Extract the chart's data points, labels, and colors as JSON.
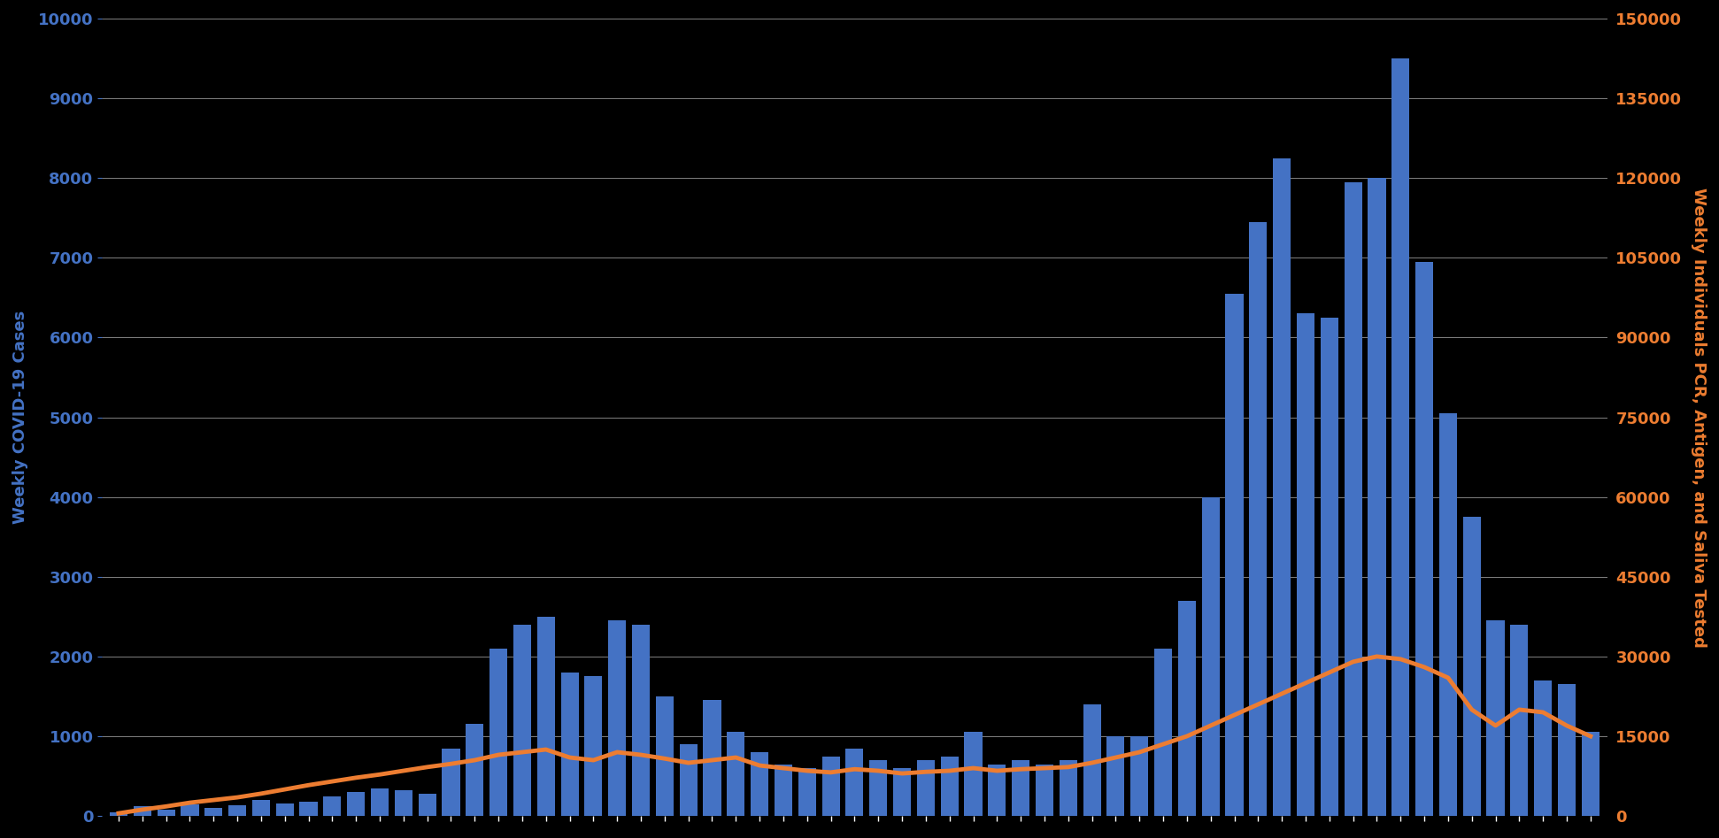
{
  "weekly_cases": [
    50,
    120,
    80,
    150,
    100,
    130,
    200,
    160,
    180,
    250,
    300,
    350,
    320,
    280,
    850,
    1150,
    2100,
    2400,
    2500,
    1800,
    1750,
    2450,
    2400,
    1500,
    900,
    1450,
    1050,
    800,
    650,
    600,
    750,
    850,
    700,
    600,
    700,
    750,
    1050,
    650,
    700,
    650,
    700,
    1400,
    1000,
    1000,
    2100,
    2700,
    4000,
    6550,
    7450,
    8250,
    6300,
    6250,
    7950,
    8000,
    9500,
    6950,
    5050,
    3750,
    2450,
    2400,
    1700,
    1650,
    1050
  ],
  "weekly_tested": [
    500,
    1200,
    1800,
    2500,
    3000,
    3500,
    4200,
    5000,
    5800,
    6500,
    7200,
    7800,
    8500,
    9200,
    9800,
    10500,
    11500,
    12000,
    12500,
    11000,
    10500,
    12000,
    11500,
    10800,
    10000,
    10500,
    11000,
    9500,
    9000,
    8500,
    8200,
    8800,
    8500,
    8000,
    8300,
    8500,
    9000,
    8500,
    8800,
    9000,
    9200,
    10000,
    11000,
    12000,
    13500,
    15000,
    17000,
    19000,
    21000,
    23000,
    25000,
    27000,
    29000,
    30000,
    29500,
    28000,
    26000,
    20000,
    17000,
    20000,
    19500,
    17000,
    15000
  ],
  "bar_color": "#4472c4",
  "line_color": "#ed7d31",
  "bg_color": "#000000",
  "text_color": "#ffffff",
  "grid_color": "#ffffff",
  "left_label_color": "#4472c4",
  "right_label_color": "#ed7d31",
  "left_ylabel": "Weekly COVID-19 Cases",
  "right_ylabel": "Weekly Individuals PCR, Antigen, and Saliva Tested",
  "ylim_left": [
    0,
    10000
  ],
  "ylim_right": [
    0,
    150000
  ],
  "yticks_left": [
    0,
    1000,
    2000,
    3000,
    4000,
    5000,
    6000,
    7000,
    8000,
    9000,
    10000
  ],
  "yticks_right": [
    0,
    15000,
    30000,
    45000,
    60000,
    75000,
    90000,
    105000,
    120000,
    135000,
    150000
  ]
}
